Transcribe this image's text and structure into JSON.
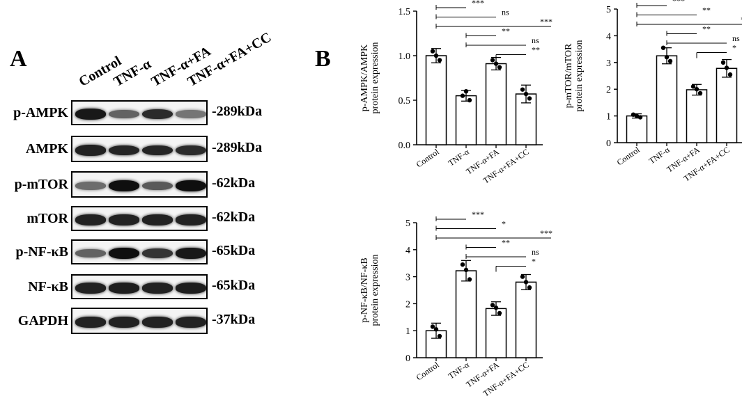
{
  "panelA": {
    "letter": "A",
    "lanes": [
      "Control",
      "TNF-α",
      "TNF-α+FA",
      "TNF-α+FA+CC"
    ],
    "blots": [
      {
        "name": "p-AMPK",
        "kda": "-289kDa",
        "intensity": [
          0.95,
          0.55,
          0.85,
          0.45
        ]
      },
      {
        "name": "AMPK",
        "kda": "-289kDa",
        "intensity": [
          0.9,
          0.88,
          0.88,
          0.85
        ]
      },
      {
        "name": "p-mTOR",
        "kda": "-62kDa",
        "intensity": [
          0.5,
          1.0,
          0.6,
          1.0
        ]
      },
      {
        "name": "mTOR",
        "kda": "-62kDa",
        "intensity": [
          0.9,
          0.9,
          0.9,
          0.9
        ]
      },
      {
        "name": "p-NF-κB",
        "kda": "-65kDa",
        "intensity": [
          0.55,
          1.0,
          0.8,
          0.95
        ]
      },
      {
        "name": "NF-κB",
        "kda": "-65kDa",
        "intensity": [
          0.9,
          0.92,
          0.9,
          0.92
        ]
      },
      {
        "name": "GAPDH",
        "kda": "-37kDa",
        "intensity": [
          0.9,
          0.9,
          0.9,
          0.9
        ]
      }
    ]
  },
  "panelB": {
    "letter": "B"
  },
  "chart_data": [
    {
      "type": "bar",
      "categories": [
        "Control",
        "TNF-α",
        "TNF-α+FA",
        "TNF-α+FA+CC"
      ],
      "values": [
        1.0,
        0.55,
        0.91,
        0.57
      ],
      "errors": [
        0.08,
        0.06,
        0.07,
        0.1
      ],
      "points": [
        [
          1.05,
          0.95,
          1.0
        ],
        [
          0.55,
          0.5,
          0.6
        ],
        [
          0.95,
          0.87,
          0.91
        ],
        [
          0.62,
          0.52,
          0.57
        ]
      ],
      "ylabel": [
        "p-AMPK/AMPK",
        "protein expression"
      ],
      "ylim": [
        0,
        1.5
      ],
      "yticks": [
        "0.0",
        "0.5",
        "1.0",
        "1.5"
      ],
      "significance": [
        {
          "from": 0,
          "to": 1,
          "label": "***"
        },
        {
          "from": 0,
          "to": 2,
          "label": "ns"
        },
        {
          "from": 0,
          "to": 3,
          "label": "***"
        },
        {
          "from": 1,
          "to": 2,
          "label": "**"
        },
        {
          "from": 1,
          "to": 3,
          "label": "ns"
        },
        {
          "from": 2,
          "to": 3,
          "label": "**"
        }
      ]
    },
    {
      "type": "bar",
      "categories": [
        "Control",
        "TNF-α",
        "TNF-α+FA",
        "TNF-α+FA+CC"
      ],
      "values": [
        1.0,
        3.25,
        1.98,
        2.78
      ],
      "errors": [
        0.08,
        0.3,
        0.2,
        0.33
      ],
      "points": [
        [
          1.05,
          0.95,
          1.0
        ],
        [
          3.55,
          3.05,
          3.2
        ],
        [
          2.1,
          1.85,
          2.0
        ],
        [
          3.0,
          2.55,
          2.8
        ]
      ],
      "ylabel": [
        "p-mTOR/mTOR",
        "protein expression"
      ],
      "ylim": [
        0,
        5
      ],
      "yticks": [
        "0",
        "1",
        "2",
        "3",
        "4",
        "5"
      ],
      "significance": [
        {
          "from": 0,
          "to": 1,
          "label": "***"
        },
        {
          "from": 0,
          "to": 2,
          "label": "**"
        },
        {
          "from": 0,
          "to": 3,
          "label": "***"
        },
        {
          "from": 1,
          "to": 2,
          "label": "**"
        },
        {
          "from": 1,
          "to": 3,
          "label": "ns"
        },
        {
          "from": 2,
          "to": 3,
          "label": "*"
        }
      ]
    },
    {
      "type": "bar",
      "categories": [
        "Control",
        "TNF-α",
        "TNF-α+FA",
        "TNF-α+FA+CC"
      ],
      "values": [
        1.0,
        3.22,
        1.82,
        2.8
      ],
      "errors": [
        0.28,
        0.38,
        0.25,
        0.28
      ],
      "points": [
        [
          1.15,
          0.8,
          1.05
        ],
        [
          3.45,
          2.9,
          3.25
        ],
        [
          1.95,
          1.65,
          1.85
        ],
        [
          3.0,
          2.6,
          2.8
        ]
      ],
      "ylabel": [
        "p-NF-κB/NF-κB",
        "protein expression"
      ],
      "ylim": [
        0,
        5
      ],
      "yticks": [
        "0",
        "1",
        "2",
        "3",
        "4",
        "5"
      ],
      "significance": [
        {
          "from": 0,
          "to": 1,
          "label": "***"
        },
        {
          "from": 0,
          "to": 2,
          "label": "*"
        },
        {
          "from": 0,
          "to": 3,
          "label": "***"
        },
        {
          "from": 1,
          "to": 2,
          "label": "**"
        },
        {
          "from": 1,
          "to": 3,
          "label": "ns"
        },
        {
          "from": 2,
          "to": 3,
          "label": "*"
        }
      ]
    }
  ]
}
